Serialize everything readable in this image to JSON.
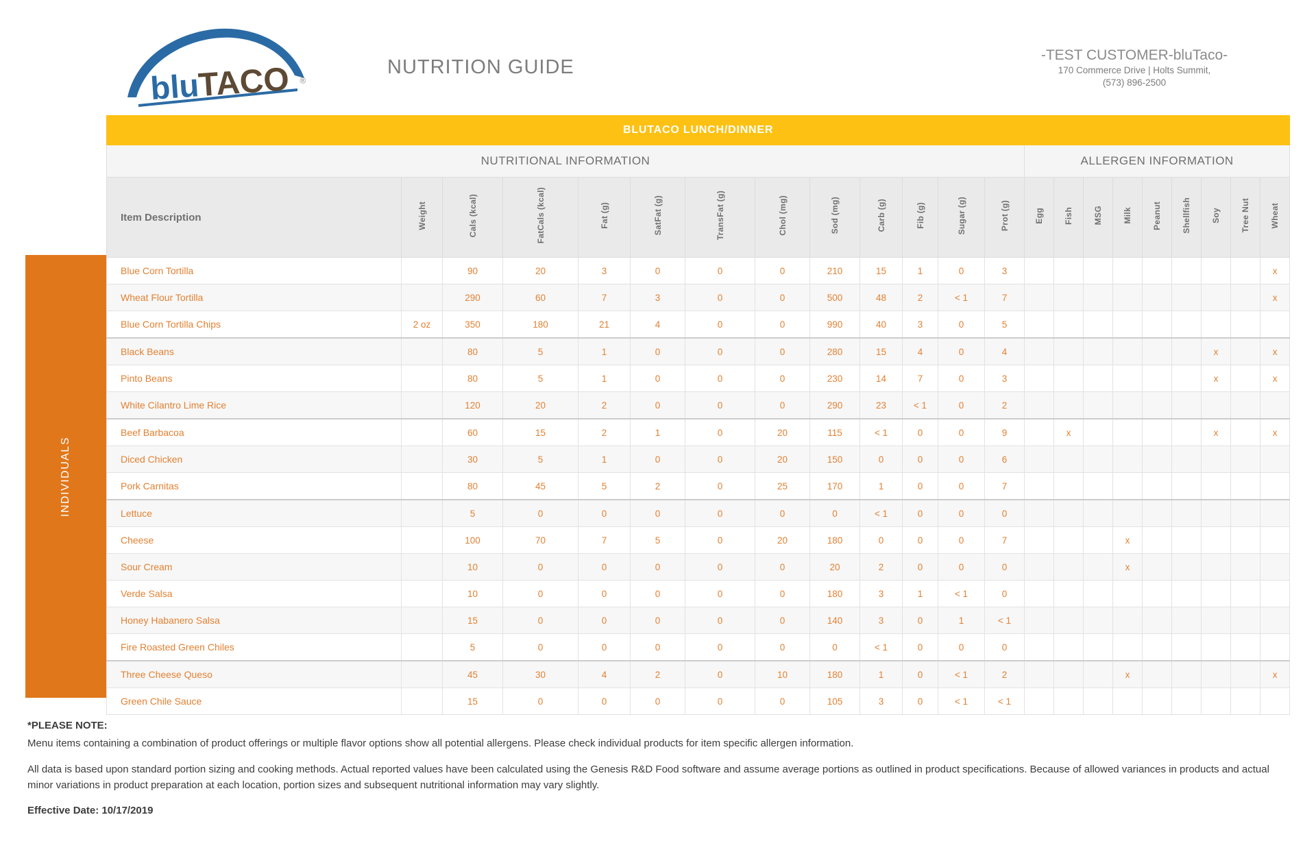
{
  "header": {
    "logo": {
      "part1": "blu",
      "part2": "TACO",
      "reg": "®"
    },
    "title": "NUTRITION GUIDE",
    "customer_name": "-TEST CUSTOMER-bluTaco-",
    "customer_address": "170 Commerce Drive | Holts Summit,",
    "customer_phone": "(573) 896-2500"
  },
  "table": {
    "banner": "BLUTACO LUNCH/DINNER",
    "nutrition_section": "NUTRITIONAL INFORMATION",
    "allergen_section": "ALLERGEN INFORMATION",
    "item_column": "Item Description",
    "group_label": "INDIVIDUALS",
    "nutrition_columns": [
      "Weight",
      "Cals (kcal)",
      "FatCals (kcal)",
      "Fat (g)",
      "SatFat (g)",
      "TransFat (g)",
      "Chol (mg)",
      "Sod (mg)",
      "Carb (g)",
      "Fib (g)",
      "Sugar (g)",
      "Prot (g)"
    ],
    "allergen_columns": [
      "Egg",
      "Fish",
      "MSG",
      "Milk",
      "Peanut",
      "Shellfish",
      "Soy",
      "Tree Nut",
      "Wheat"
    ],
    "rows": [
      {
        "item": "Blue Corn Tortilla",
        "weight": "",
        "values": [
          "90",
          "20",
          "3",
          "0",
          "0",
          "0",
          "210",
          "15",
          "1",
          "0",
          "3"
        ],
        "allergens": [
          "",
          "",
          "",
          "",
          "",
          "",
          "",
          "",
          "x"
        ],
        "separator": false
      },
      {
        "item": "Wheat Flour Tortilla",
        "weight": "",
        "values": [
          "290",
          "60",
          "7",
          "3",
          "0",
          "0",
          "500",
          "48",
          "2",
          "< 1",
          "7"
        ],
        "allergens": [
          "",
          "",
          "",
          "",
          "",
          "",
          "",
          "",
          "x"
        ],
        "separator": false
      },
      {
        "item": "Blue Corn Tortilla Chips",
        "weight": "2 oz",
        "values": [
          "350",
          "180",
          "21",
          "4",
          "0",
          "0",
          "990",
          "40",
          "3",
          "0",
          "5"
        ],
        "allergens": [
          "",
          "",
          "",
          "",
          "",
          "",
          "",
          "",
          ""
        ],
        "separator": true
      },
      {
        "item": "Black Beans",
        "weight": "",
        "values": [
          "80",
          "5",
          "1",
          "0",
          "0",
          "0",
          "280",
          "15",
          "4",
          "0",
          "4"
        ],
        "allergens": [
          "",
          "",
          "",
          "",
          "",
          "",
          "x",
          "",
          "x"
        ],
        "separator": false
      },
      {
        "item": "Pinto Beans",
        "weight": "",
        "values": [
          "80",
          "5",
          "1",
          "0",
          "0",
          "0",
          "230",
          "14",
          "7",
          "0",
          "3"
        ],
        "allergens": [
          "",
          "",
          "",
          "",
          "",
          "",
          "x",
          "",
          "x"
        ],
        "separator": false
      },
      {
        "item": "White Cilantro Lime Rice",
        "weight": "",
        "values": [
          "120",
          "20",
          "2",
          "0",
          "0",
          "0",
          "290",
          "23",
          "< 1",
          "0",
          "2"
        ],
        "allergens": [
          "",
          "",
          "",
          "",
          "",
          "",
          "",
          "",
          ""
        ],
        "separator": true
      },
      {
        "item": "Beef Barbacoa",
        "weight": "",
        "values": [
          "60",
          "15",
          "2",
          "1",
          "0",
          "20",
          "115",
          "< 1",
          "0",
          "0",
          "9"
        ],
        "allergens": [
          "",
          "x",
          "",
          "",
          "",
          "",
          "x",
          "",
          "x"
        ],
        "separator": false
      },
      {
        "item": "Diced Chicken",
        "weight": "",
        "values": [
          "30",
          "5",
          "1",
          "0",
          "0",
          "20",
          "150",
          "0",
          "0",
          "0",
          "6"
        ],
        "allergens": [
          "",
          "",
          "",
          "",
          "",
          "",
          "",
          "",
          ""
        ],
        "separator": false
      },
      {
        "item": "Pork Carnitas",
        "weight": "",
        "values": [
          "80",
          "45",
          "5",
          "2",
          "0",
          "25",
          "170",
          "1",
          "0",
          "0",
          "7"
        ],
        "allergens": [
          "",
          "",
          "",
          "",
          "",
          "",
          "",
          "",
          ""
        ],
        "separator": true
      },
      {
        "item": "Lettuce",
        "weight": "",
        "values": [
          "5",
          "0",
          "0",
          "0",
          "0",
          "0",
          "0",
          "< 1",
          "0",
          "0",
          "0"
        ],
        "allergens": [
          "",
          "",
          "",
          "",
          "",
          "",
          "",
          "",
          ""
        ],
        "separator": false
      },
      {
        "item": "Cheese",
        "weight": "",
        "values": [
          "100",
          "70",
          "7",
          "5",
          "0",
          "20",
          "180",
          "0",
          "0",
          "0",
          "7"
        ],
        "allergens": [
          "",
          "",
          "",
          "x",
          "",
          "",
          "",
          "",
          ""
        ],
        "separator": false
      },
      {
        "item": "Sour Cream",
        "weight": "",
        "values": [
          "10",
          "0",
          "0",
          "0",
          "0",
          "0",
          "20",
          "2",
          "0",
          "0",
          "0"
        ],
        "allergens": [
          "",
          "",
          "",
          "x",
          "",
          "",
          "",
          "",
          ""
        ],
        "separator": false
      },
      {
        "item": "Verde Salsa",
        "weight": "",
        "values": [
          "10",
          "0",
          "0",
          "0",
          "0",
          "0",
          "180",
          "3",
          "1",
          "< 1",
          "0"
        ],
        "allergens": [
          "",
          "",
          "",
          "",
          "",
          "",
          "",
          "",
          ""
        ],
        "separator": false
      },
      {
        "item": "Honey Habanero Salsa",
        "weight": "",
        "values": [
          "15",
          "0",
          "0",
          "0",
          "0",
          "0",
          "140",
          "3",
          "0",
          "1",
          "< 1"
        ],
        "allergens": [
          "",
          "",
          "",
          "",
          "",
          "",
          "",
          "",
          ""
        ],
        "separator": false
      },
      {
        "item": "Fire Roasted Green Chiles",
        "weight": "",
        "values": [
          "5",
          "0",
          "0",
          "0",
          "0",
          "0",
          "0",
          "< 1",
          "0",
          "0",
          "0"
        ],
        "allergens": [
          "",
          "",
          "",
          "",
          "",
          "",
          "",
          "",
          ""
        ],
        "separator": true
      },
      {
        "item": "Three Cheese Queso",
        "weight": "",
        "values": [
          "45",
          "30",
          "4",
          "2",
          "0",
          "10",
          "180",
          "1",
          "0",
          "< 1",
          "2"
        ],
        "allergens": [
          "",
          "",
          "",
          "x",
          "",
          "",
          "",
          "",
          "x"
        ],
        "separator": false
      },
      {
        "item": "Green Chile Sauce",
        "weight": "",
        "values": [
          "15",
          "0",
          "0",
          "0",
          "0",
          "0",
          "105",
          "3",
          "0",
          "< 1",
          "< 1"
        ],
        "allergens": [
          "",
          "",
          "",
          "",
          "",
          "",
          "",
          "",
          ""
        ],
        "separator": false
      }
    ]
  },
  "footer": {
    "note_title": "*PLEASE NOTE:",
    "note_line1": "Menu items containing a combination of product offerings or multiple flavor options show all potential allergens. Please check individual products for item specific allergen information.",
    "note_line2": "All data is based upon standard portion sizing and cooking methods. Actual reported values have been calculated using the Genesis R&D Food software and assume average portions as outlined in product specifications. Because of allowed variances in products and actual minor variations in product preparation at each location, portion sizes and subsequent nutritional information may vary slightly.",
    "effective_date": "Effective Date: 10/17/2019"
  },
  "colors": {
    "banner_yellow": "#fdc113",
    "group_orange": "#e0771b",
    "value_orange": "#e28132"
  }
}
